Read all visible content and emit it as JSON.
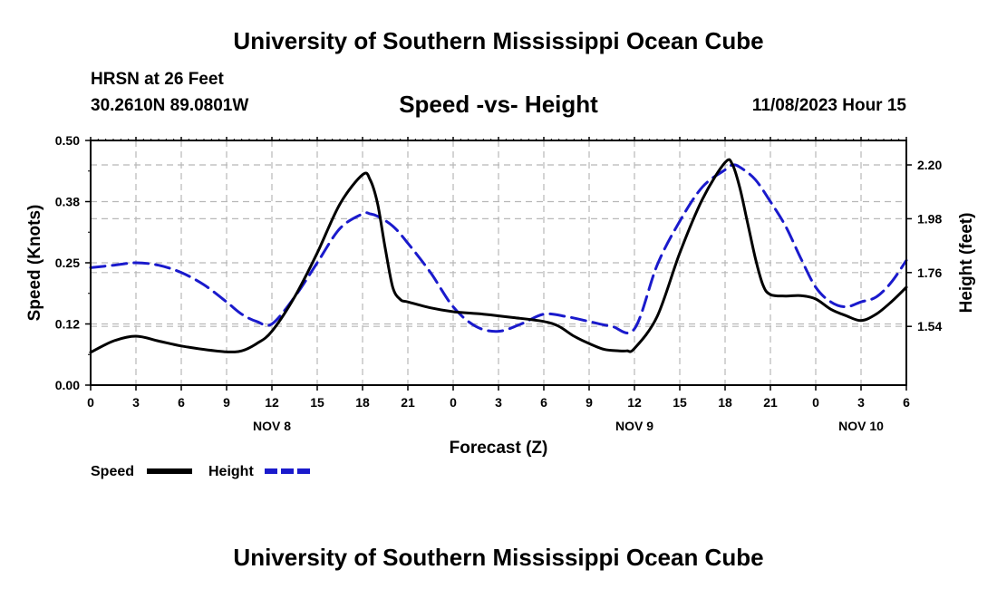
{
  "header": {
    "title": "University of Southern Mississippi Ocean Cube",
    "station": "HRSN at 26 Feet",
    "coords": "30.2610N  89.0801W",
    "subtitle": "Speed -vs- Height",
    "datetime": "11/08/2023 Hour 15",
    "footer_title": "University of Southern Mississippi Ocean Cube"
  },
  "chart_data": {
    "type": "line",
    "title": "Speed -vs- Height",
    "xlabel": "Forecast (Z)",
    "ylabel": "Speed (Knots)",
    "y2label": "Height (feet)",
    "xlim": [
      0,
      54
    ],
    "ylim": [
      0,
      0.5
    ],
    "y2lim": [
      1.3,
      2.3
    ],
    "grid": true,
    "x_ticks": [
      {
        "x": 0,
        "label": "0"
      },
      {
        "x": 3,
        "label": "3"
      },
      {
        "x": 6,
        "label": "6"
      },
      {
        "x": 9,
        "label": "9"
      },
      {
        "x": 12,
        "label": "12"
      },
      {
        "x": 15,
        "label": "15"
      },
      {
        "x": 18,
        "label": "18"
      },
      {
        "x": 21,
        "label": "21"
      },
      {
        "x": 24,
        "label": "0"
      },
      {
        "x": 27,
        "label": "3"
      },
      {
        "x": 30,
        "label": "6"
      },
      {
        "x": 33,
        "label": "9"
      },
      {
        "x": 36,
        "label": "12"
      },
      {
        "x": 39,
        "label": "15"
      },
      {
        "x": 42,
        "label": "18"
      },
      {
        "x": 45,
        "label": "21"
      },
      {
        "x": 48,
        "label": "0"
      },
      {
        "x": 51,
        "label": "3"
      },
      {
        "x": 54,
        "label": "6"
      }
    ],
    "date_labels": [
      {
        "x": 12,
        "label": "NOV 8"
      },
      {
        "x": 36,
        "label": "NOV 9"
      },
      {
        "x": 51,
        "label": "NOV 10"
      }
    ],
    "y_ticks": [
      {
        "value": 0,
        "label": "0.00"
      },
      {
        "value": 0.125,
        "label": "0.12"
      },
      {
        "value": 0.25,
        "label": "0.25"
      },
      {
        "value": 0.375,
        "label": "0.38"
      },
      {
        "value": 0.5,
        "label": "0.50"
      }
    ],
    "y2_ticks": [
      {
        "value": 1.54,
        "label": "1.54"
      },
      {
        "value": 1.76,
        "label": "1.76"
      },
      {
        "value": 1.98,
        "label": "1.98"
      },
      {
        "value": 2.2,
        "label": "2.20"
      }
    ],
    "legend": [
      {
        "name": "Speed",
        "color": "#000000",
        "style": "solid"
      },
      {
        "name": "Height",
        "color": "#1a1acc",
        "style": "dashed"
      }
    ],
    "series": [
      {
        "name": "Speed",
        "axis": "left",
        "color": "#000000",
        "dash": false,
        "x": [
          0,
          1.5,
          3,
          4.5,
          6,
          7.5,
          9,
          10,
          11,
          12,
          13.5,
          15,
          16.5,
          18,
          18.5,
          19,
          19.5,
          20,
          20.5,
          21,
          22.5,
          24,
          26,
          28,
          30,
          31,
          32,
          33,
          34,
          35,
          35.5,
          36,
          37.5,
          39,
          40.5,
          42,
          42.5,
          43,
          43.5,
          44,
          44.5,
          45,
          46,
          47,
          48,
          49,
          50,
          51,
          52,
          53,
          54
        ],
        "y": [
          0.067,
          0.09,
          0.1,
          0.09,
          0.08,
          0.073,
          0.068,
          0.07,
          0.085,
          0.11,
          0.18,
          0.27,
          0.37,
          0.43,
          0.42,
          0.37,
          0.28,
          0.2,
          0.175,
          0.17,
          0.158,
          0.15,
          0.145,
          0.138,
          0.13,
          0.12,
          0.1,
          0.085,
          0.073,
          0.07,
          0.07,
          0.075,
          0.14,
          0.27,
          0.38,
          0.455,
          0.45,
          0.4,
          0.33,
          0.26,
          0.205,
          0.185,
          0.182,
          0.183,
          0.176,
          0.155,
          0.142,
          0.132,
          0.145,
          0.17,
          0.2
        ]
      },
      {
        "name": "Height",
        "axis": "right",
        "color": "#1a1acc",
        "dash": true,
        "x": [
          0,
          1.5,
          3,
          4.5,
          6,
          7.5,
          9,
          10,
          11,
          12,
          13.5,
          15,
          16.5,
          18,
          18.5,
          19,
          20,
          21,
          22.5,
          24,
          25.5,
          27,
          28.5,
          30,
          31.5,
          33,
          34.5,
          36,
          37.5,
          39,
          40.5,
          42,
          42.5,
          43,
          44,
          45,
          46,
          47,
          48,
          49,
          50,
          51,
          52,
          53,
          54
        ],
        "y": [
          1.78,
          1.79,
          1.8,
          1.79,
          1.76,
          1.71,
          1.64,
          1.59,
          1.56,
          1.55,
          1.66,
          1.8,
          1.94,
          2.0,
          2.0,
          1.99,
          1.95,
          1.88,
          1.76,
          1.62,
          1.54,
          1.52,
          1.55,
          1.59,
          1.58,
          1.56,
          1.54,
          1.53,
          1.79,
          1.97,
          2.11,
          2.18,
          2.2,
          2.19,
          2.14,
          2.05,
          1.95,
          1.82,
          1.7,
          1.64,
          1.62,
          1.64,
          1.66,
          1.72,
          1.81
        ]
      }
    ]
  }
}
